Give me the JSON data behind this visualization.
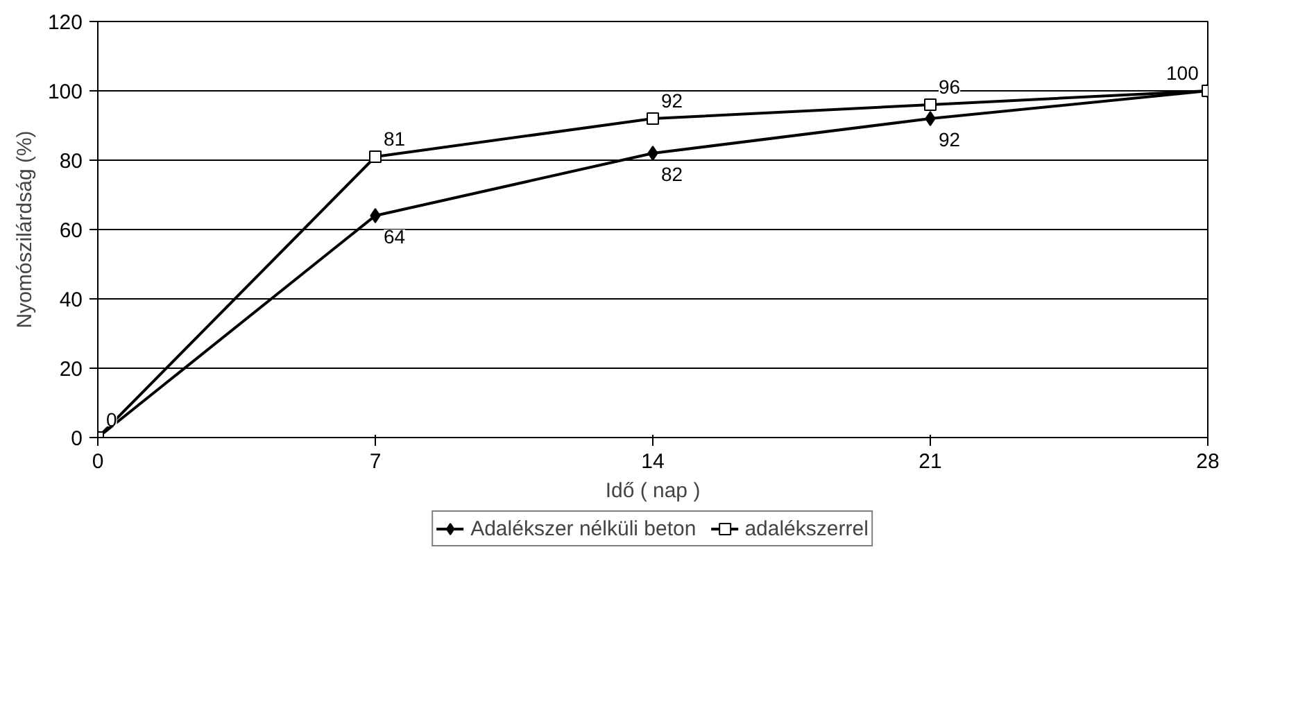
{
  "chart_data": {
    "type": "line",
    "xlabel": "Idő ( nap )",
    "ylabel": "Nyomószilárdság (%)",
    "x": [
      0,
      7,
      14,
      21,
      28
    ],
    "series": [
      {
        "name": "Adalékszer nélküli beton",
        "color": "#000000",
        "marker": "diamond",
        "values": [
          0,
          64,
          82,
          92,
          100
        ],
        "value_labels": [
          null,
          "64",
          "82",
          "92",
          null
        ]
      },
      {
        "name": "adalékszerrel",
        "color": "#000000",
        "marker": "square",
        "values": [
          0,
          81,
          92,
          96,
          100
        ],
        "value_labels": [
          "0",
          "81",
          "92",
          "96",
          "100"
        ]
      }
    ],
    "xlim": [
      0,
      28
    ],
    "xticks": [
      0,
      7,
      14,
      21,
      28
    ],
    "ylim": [
      0,
      120
    ],
    "yticks": [
      0,
      20,
      40,
      60,
      80,
      100,
      120
    ],
    "grid": "y",
    "legend": "bottom",
    "line_style": "solid"
  }
}
